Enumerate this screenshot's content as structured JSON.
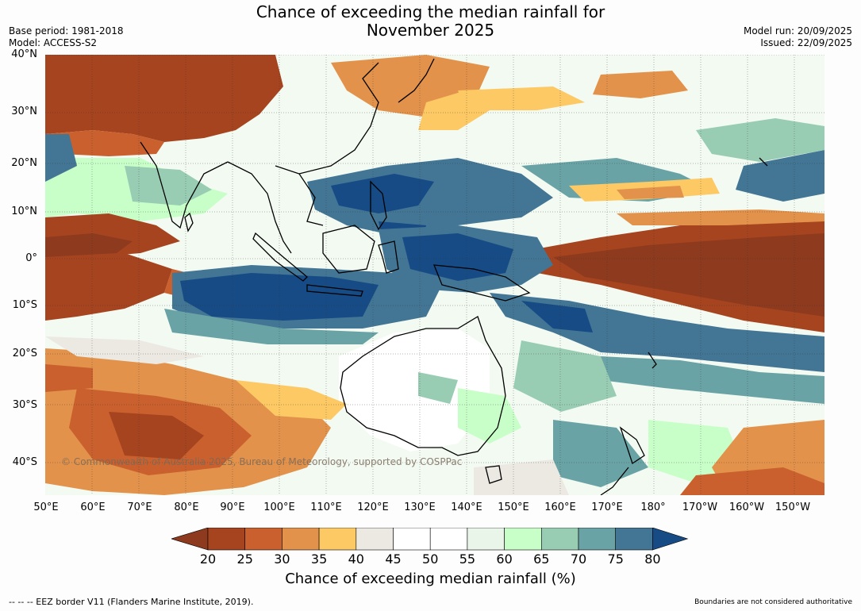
{
  "header": {
    "title_line1": "Chance of exceeding the median rainfall for",
    "title_line2": "November 2025",
    "base_period": "Base period: 1981-2018",
    "model": "Model: ACCESS-S2",
    "model_run": "Model run: 20/09/2025",
    "issued": "Issued: 22/09/2025"
  },
  "map": {
    "lat_labels": [
      "40°N",
      "30°N",
      "20°N",
      "10°N",
      "0°",
      "10°S",
      "20°S",
      "30°S",
      "40°S"
    ],
    "lon_labels": [
      "50°E",
      "60°E",
      "70°E",
      "80°E",
      "90°E",
      "100°E",
      "110°E",
      "120°E",
      "130°E",
      "140°E",
      "150°E",
      "160°E",
      "170°E",
      "180°",
      "170°W",
      "160°W",
      "150°W"
    ],
    "copyright": "© Commonwealth of Australia 2025, Bureau of Meteorology, supported by COSPPac"
  },
  "legend": {
    "ticks": [
      "20",
      "25",
      "30",
      "35",
      "40",
      "45",
      "50",
      "55",
      "60",
      "65",
      "70",
      "75",
      "80"
    ],
    "label": "Chance of exceeding median rainfall (%)",
    "colors": [
      "#8e3a1e",
      "#a6441f",
      "#c9602d",
      "#e2924a",
      "#fdc964",
      "#ece9e3",
      "#ffffff",
      "#ffffff",
      "#e8f5e8",
      "#c8ffc8",
      "#98cdb3",
      "#6aa3a6",
      "#437594",
      "#174b85"
    ]
  },
  "footer": {
    "eez": "--  --  -- EEZ border V11 (Flanders Marine Institute, 2019).",
    "disclaimer": "Boundaries are not considered authoritative"
  }
}
